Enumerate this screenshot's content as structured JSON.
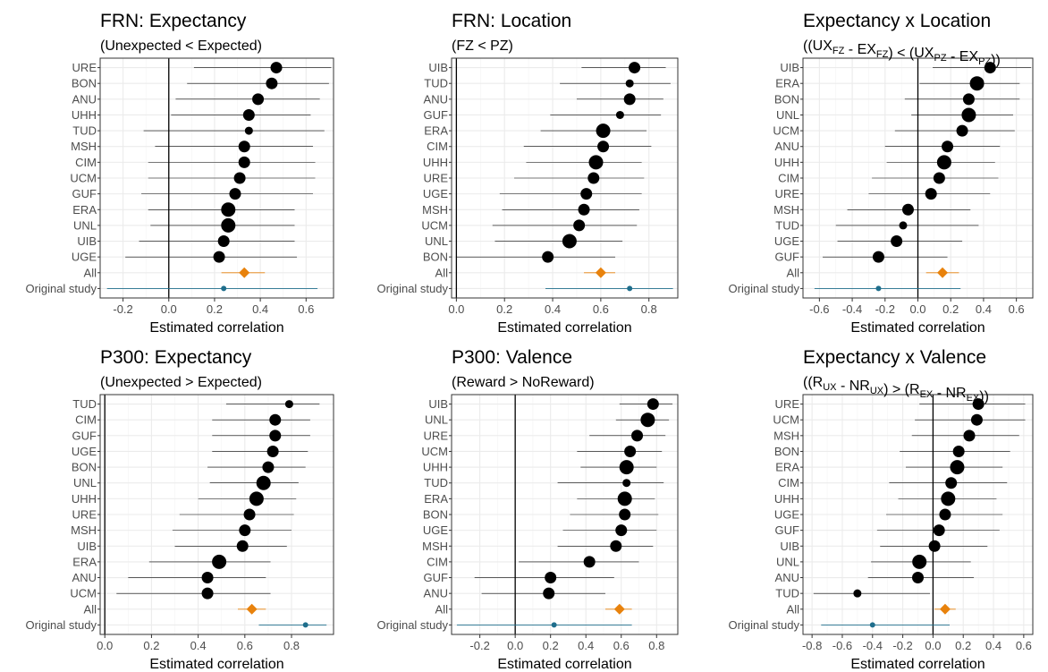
{
  "chart_data": [
    {
      "type": "scatter",
      "title": "FRN: Expectancy",
      "subtitle": [
        {
          "t": "(Unexpected < Expected)"
        }
      ],
      "xlabel": "Estimated correlation",
      "xlim": [
        -0.3,
        0.72
      ],
      "xticks": [
        -0.2,
        0.0,
        0.2,
        0.4,
        0.6
      ],
      "xtick_labels": [
        "-0.2",
        "0.0",
        "0.2",
        "0.4",
        "0.6"
      ],
      "rows": [
        {
          "label": "URE",
          "estimate": 0.47,
          "lower": 0.11,
          "upper": 0.71,
          "size": 2
        },
        {
          "label": "BON",
          "estimate": 0.45,
          "lower": 0.08,
          "upper": 0.7,
          "size": 2
        },
        {
          "label": "ANU",
          "estimate": 0.39,
          "lower": 0.03,
          "upper": 0.66,
          "size": 2
        },
        {
          "label": "UHH",
          "estimate": 0.35,
          "lower": 0.01,
          "upper": 0.62,
          "size": 2
        },
        {
          "label": "TUD",
          "estimate": 0.35,
          "lower": -0.11,
          "upper": 0.68,
          "size": 1
        },
        {
          "label": "MSH",
          "estimate": 0.33,
          "lower": -0.06,
          "upper": 0.63,
          "size": 2
        },
        {
          "label": "CIM",
          "estimate": 0.33,
          "lower": -0.09,
          "upper": 0.64,
          "size": 2
        },
        {
          "label": "UCM",
          "estimate": 0.31,
          "lower": -0.09,
          "upper": 0.64,
          "size": 2
        },
        {
          "label": "GUF",
          "estimate": 0.29,
          "lower": -0.12,
          "upper": 0.63,
          "size": 2
        },
        {
          "label": "ERA",
          "estimate": 0.26,
          "lower": -0.09,
          "upper": 0.55,
          "size": 3
        },
        {
          "label": "UNL",
          "estimate": 0.26,
          "lower": -0.08,
          "upper": 0.55,
          "size": 3
        },
        {
          "label": "UIB",
          "estimate": 0.24,
          "lower": -0.13,
          "upper": 0.55,
          "size": 2
        },
        {
          "label": "UGE",
          "estimate": 0.22,
          "lower": -0.19,
          "upper": 0.56,
          "size": 2
        },
        {
          "label": "All",
          "estimate": 0.33,
          "lower": 0.23,
          "upper": 0.42,
          "kind": "all"
        },
        {
          "label": "Original study",
          "estimate": 0.24,
          "lower": -0.27,
          "upper": 0.65,
          "kind": "original"
        }
      ]
    },
    {
      "type": "scatter",
      "title": "FRN: Location",
      "subtitle": [
        {
          "t": "(FZ < PZ)"
        }
      ],
      "xlabel": "Estimated correlation",
      "xlim": [
        -0.02,
        0.92
      ],
      "xticks": [
        0.0,
        0.2,
        0.4,
        0.6,
        0.8
      ],
      "xtick_labels": [
        "0.0",
        "0.2",
        "0.4",
        "0.6",
        "0.8"
      ],
      "rows": [
        {
          "label": "UIB",
          "estimate": 0.74,
          "lower": 0.52,
          "upper": 0.87,
          "size": 2
        },
        {
          "label": "TUD",
          "estimate": 0.72,
          "lower": 0.43,
          "upper": 0.89,
          "size": 1
        },
        {
          "label": "ANU",
          "estimate": 0.72,
          "lower": 0.5,
          "upper": 0.86,
          "size": 2
        },
        {
          "label": "GUF",
          "estimate": 0.68,
          "lower": 0.39,
          "upper": 0.85,
          "size": 1
        },
        {
          "label": "ERA",
          "estimate": 0.61,
          "lower": 0.35,
          "upper": 0.79,
          "size": 3
        },
        {
          "label": "CIM",
          "estimate": 0.61,
          "lower": 0.28,
          "upper": 0.81,
          "size": 2
        },
        {
          "label": "UHH",
          "estimate": 0.58,
          "lower": 0.29,
          "upper": 0.77,
          "size": 3
        },
        {
          "label": "URE",
          "estimate": 0.57,
          "lower": 0.24,
          "upper": 0.78,
          "size": 2
        },
        {
          "label": "UGE",
          "estimate": 0.54,
          "lower": 0.18,
          "upper": 0.77,
          "size": 2
        },
        {
          "label": "MSH",
          "estimate": 0.53,
          "lower": 0.19,
          "upper": 0.76,
          "size": 2
        },
        {
          "label": "UCM",
          "estimate": 0.51,
          "lower": 0.15,
          "upper": 0.75,
          "size": 2
        },
        {
          "label": "UNL",
          "estimate": 0.47,
          "lower": 0.16,
          "upper": 0.69,
          "size": 3
        },
        {
          "label": "BON",
          "estimate": 0.38,
          "lower": 0.0,
          "upper": 0.66,
          "size": 2
        },
        {
          "label": "All",
          "estimate": 0.6,
          "lower": 0.53,
          "upper": 0.66,
          "kind": "all"
        },
        {
          "label": "Original study",
          "estimate": 0.72,
          "lower": 0.37,
          "upper": 0.9,
          "kind": "original"
        }
      ]
    },
    {
      "type": "scatter",
      "title": "Expectancy x Location",
      "subtitle": [
        {
          "t": "(("
        },
        {
          "t": "UX"
        },
        {
          "t": "FZ",
          "sub": true
        },
        {
          "t": " - "
        },
        {
          "t": "EX"
        },
        {
          "t": "FZ",
          "sub": true
        },
        {
          "t": ") < ("
        },
        {
          "t": "UX"
        },
        {
          "t": "PZ",
          "sub": true
        },
        {
          "t": " - "
        },
        {
          "t": "EX"
        },
        {
          "t": "PZ",
          "sub": true
        },
        {
          "t": "))"
        }
      ],
      "xlabel": "Estimated correlation",
      "xlim": [
        -0.7,
        0.7
      ],
      "xticks": [
        -0.6,
        -0.4,
        -0.2,
        0.0,
        0.2,
        0.4,
        0.6
      ],
      "xtick_labels": [
        "-0.6",
        "-0.4",
        "-0.2",
        "0.0",
        "0.2",
        "0.4",
        "0.6"
      ],
      "rows": [
        {
          "label": "UIB",
          "estimate": 0.44,
          "lower": 0.09,
          "upper": 0.69,
          "size": 2
        },
        {
          "label": "ERA",
          "estimate": 0.36,
          "lower": 0.01,
          "upper": 0.62,
          "size": 3
        },
        {
          "label": "BON",
          "estimate": 0.31,
          "lower": -0.08,
          "upper": 0.62,
          "size": 2
        },
        {
          "label": "UNL",
          "estimate": 0.31,
          "lower": -0.04,
          "upper": 0.58,
          "size": 3
        },
        {
          "label": "UCM",
          "estimate": 0.27,
          "lower": -0.14,
          "upper": 0.59,
          "size": 2
        },
        {
          "label": "ANU",
          "estimate": 0.18,
          "lower": -0.2,
          "upper": 0.5,
          "size": 2
        },
        {
          "label": "UHH",
          "estimate": 0.16,
          "lower": -0.19,
          "upper": 0.47,
          "size": 3
        },
        {
          "label": "CIM",
          "estimate": 0.13,
          "lower": -0.28,
          "upper": 0.49,
          "size": 2
        },
        {
          "label": "URE",
          "estimate": 0.08,
          "lower": -0.3,
          "upper": 0.44,
          "size": 2
        },
        {
          "label": "MSH",
          "estimate": -0.06,
          "lower": -0.43,
          "upper": 0.32,
          "size": 2
        },
        {
          "label": "TUD",
          "estimate": -0.09,
          "lower": -0.5,
          "upper": 0.37,
          "size": 1
        },
        {
          "label": "UGE",
          "estimate": -0.13,
          "lower": -0.49,
          "upper": 0.27,
          "size": 2
        },
        {
          "label": "GUF",
          "estimate": -0.24,
          "lower": -0.58,
          "upper": 0.18,
          "size": 2
        },
        {
          "label": "All",
          "estimate": 0.15,
          "lower": 0.05,
          "upper": 0.25,
          "kind": "all"
        },
        {
          "label": "Original study",
          "estimate": -0.24,
          "lower": -0.63,
          "upper": 0.26,
          "kind": "original"
        }
      ]
    },
    {
      "type": "scatter",
      "title": "P300: Expectancy",
      "subtitle": [
        {
          "t": "(Unexpected > Expected)"
        }
      ],
      "xlabel": "Estimated correlation",
      "xlim": [
        -0.02,
        0.98
      ],
      "xticks": [
        0.0,
        0.2,
        0.4,
        0.6,
        0.8
      ],
      "xtick_labels": [
        "0.0",
        "0.2",
        "0.4",
        "0.6",
        "0.8"
      ],
      "rows": [
        {
          "label": "TUD",
          "estimate": 0.79,
          "lower": 0.52,
          "upper": 0.92,
          "size": 1
        },
        {
          "label": "CIM",
          "estimate": 0.73,
          "lower": 0.46,
          "upper": 0.88,
          "size": 2
        },
        {
          "label": "GUF",
          "estimate": 0.73,
          "lower": 0.46,
          "upper": 0.88,
          "size": 2
        },
        {
          "label": "UGE",
          "estimate": 0.72,
          "lower": 0.46,
          "upper": 0.87,
          "size": 2
        },
        {
          "label": "BON",
          "estimate": 0.7,
          "lower": 0.44,
          "upper": 0.86,
          "size": 2
        },
        {
          "label": "UNL",
          "estimate": 0.68,
          "lower": 0.45,
          "upper": 0.83,
          "size": 3
        },
        {
          "label": "UHH",
          "estimate": 0.65,
          "lower": 0.4,
          "upper": 0.82,
          "size": 3
        },
        {
          "label": "URE",
          "estimate": 0.62,
          "lower": 0.32,
          "upper": 0.81,
          "size": 2
        },
        {
          "label": "MSH",
          "estimate": 0.6,
          "lower": 0.29,
          "upper": 0.8,
          "size": 2
        },
        {
          "label": "UIB",
          "estimate": 0.59,
          "lower": 0.3,
          "upper": 0.78,
          "size": 2
        },
        {
          "label": "ERA",
          "estimate": 0.49,
          "lower": 0.19,
          "upper": 0.71,
          "size": 3
        },
        {
          "label": "ANU",
          "estimate": 0.44,
          "lower": 0.1,
          "upper": 0.69,
          "size": 2
        },
        {
          "label": "UCM",
          "estimate": 0.44,
          "lower": 0.05,
          "upper": 0.71,
          "size": 2
        },
        {
          "label": "All",
          "estimate": 0.63,
          "lower": 0.57,
          "upper": 0.69,
          "kind": "all"
        },
        {
          "label": "Original study",
          "estimate": 0.86,
          "lower": 0.66,
          "upper": 0.95,
          "kind": "original"
        }
      ]
    },
    {
      "type": "scatter",
      "title": "P300: Valence",
      "subtitle": [
        {
          "t": "(Reward > NoReward)"
        }
      ],
      "xlabel": "Estimated correlation",
      "xlim": [
        -0.36,
        0.92
      ],
      "xticks": [
        -0.2,
        0.0,
        0.2,
        0.4,
        0.6,
        0.8
      ],
      "xtick_labels": [
        "-0.2",
        "0.0",
        "0.2",
        "0.4",
        "0.6",
        "0.8"
      ],
      "rows": [
        {
          "label": "UIB",
          "estimate": 0.78,
          "lower": 0.59,
          "upper": 0.89,
          "size": 2
        },
        {
          "label": "UNL",
          "estimate": 0.75,
          "lower": 0.57,
          "upper": 0.87,
          "size": 3
        },
        {
          "label": "URE",
          "estimate": 0.69,
          "lower": 0.42,
          "upper": 0.85,
          "size": 2
        },
        {
          "label": "UCM",
          "estimate": 0.65,
          "lower": 0.35,
          "upper": 0.83,
          "size": 2
        },
        {
          "label": "UHH",
          "estimate": 0.63,
          "lower": 0.37,
          "upper": 0.8,
          "size": 3
        },
        {
          "label": "TUD",
          "estimate": 0.63,
          "lower": 0.24,
          "upper": 0.84,
          "size": 1
        },
        {
          "label": "ERA",
          "estimate": 0.62,
          "lower": 0.35,
          "upper": 0.79,
          "size": 3
        },
        {
          "label": "BON",
          "estimate": 0.62,
          "lower": 0.31,
          "upper": 0.81,
          "size": 2
        },
        {
          "label": "UGE",
          "estimate": 0.6,
          "lower": 0.27,
          "upper": 0.8,
          "size": 2
        },
        {
          "label": "MSH",
          "estimate": 0.57,
          "lower": 0.24,
          "upper": 0.78,
          "size": 2
        },
        {
          "label": "CIM",
          "estimate": 0.42,
          "lower": 0.02,
          "upper": 0.7,
          "size": 2
        },
        {
          "label": "GUF",
          "estimate": 0.2,
          "lower": -0.23,
          "upper": 0.56,
          "size": 2
        },
        {
          "label": "ANU",
          "estimate": 0.19,
          "lower": -0.19,
          "upper": 0.51,
          "size": 2
        },
        {
          "label": "All",
          "estimate": 0.59,
          "lower": 0.51,
          "upper": 0.66,
          "kind": "all"
        },
        {
          "label": "Original study",
          "estimate": 0.22,
          "lower": -0.33,
          "upper": 0.66,
          "kind": "original"
        }
      ]
    },
    {
      "type": "scatter",
      "title": "Expectancy x Valence",
      "subtitle": [
        {
          "t": "(("
        },
        {
          "t": "R"
        },
        {
          "t": "UX",
          "sub": true
        },
        {
          "t": " - "
        },
        {
          "t": "NR"
        },
        {
          "t": "UX",
          "sub": true
        },
        {
          "t": ") > ("
        },
        {
          "t": "R"
        },
        {
          "t": "EX",
          "sub": true
        },
        {
          "t": " - "
        },
        {
          "t": "NR"
        },
        {
          "t": "EX",
          "sub": true
        },
        {
          "t": "))"
        }
      ],
      "xlabel": "Estimated correlation",
      "xlim": [
        -0.86,
        0.66
      ],
      "xticks": [
        -0.8,
        -0.6,
        -0.4,
        -0.2,
        0.0,
        0.2,
        0.4,
        0.6
      ],
      "xtick_labels": [
        "-0.8",
        "-0.6",
        "-0.4",
        "-0.2",
        "0.0",
        "0.2",
        "0.4",
        "0.6"
      ],
      "rows": [
        {
          "label": "URE",
          "estimate": 0.3,
          "lower": -0.09,
          "upper": 0.61,
          "size": 2
        },
        {
          "label": "UCM",
          "estimate": 0.29,
          "lower": -0.12,
          "upper": 0.61,
          "size": 2
        },
        {
          "label": "MSH",
          "estimate": 0.24,
          "lower": -0.14,
          "upper": 0.57,
          "size": 2
        },
        {
          "label": "BON",
          "estimate": 0.17,
          "lower": -0.22,
          "upper": 0.51,
          "size": 2
        },
        {
          "label": "ERA",
          "estimate": 0.16,
          "lower": -0.18,
          "upper": 0.46,
          "size": 3
        },
        {
          "label": "CIM",
          "estimate": 0.12,
          "lower": -0.29,
          "upper": 0.49,
          "size": 2
        },
        {
          "label": "UHH",
          "estimate": 0.1,
          "lower": -0.23,
          "upper": 0.42,
          "size": 3
        },
        {
          "label": "UGE",
          "estimate": 0.08,
          "lower": -0.31,
          "upper": 0.46,
          "size": 2
        },
        {
          "label": "GUF",
          "estimate": 0.04,
          "lower": -0.37,
          "upper": 0.44,
          "size": 2
        },
        {
          "label": "UIB",
          "estimate": 0.01,
          "lower": -0.35,
          "upper": 0.36,
          "size": 2
        },
        {
          "label": "UNL",
          "estimate": -0.09,
          "lower": -0.41,
          "upper": 0.25,
          "size": 3
        },
        {
          "label": "ANU",
          "estimate": -0.1,
          "lower": -0.43,
          "upper": 0.27,
          "size": 2
        },
        {
          "label": "TUD",
          "estimate": -0.5,
          "lower": -0.79,
          "upper": -0.02,
          "size": 1
        },
        {
          "label": "All",
          "estimate": 0.08,
          "lower": 0.01,
          "upper": 0.15,
          "kind": "all"
        },
        {
          "label": "Original study",
          "estimate": -0.4,
          "lower": -0.74,
          "upper": 0.11,
          "kind": "original"
        }
      ]
    }
  ],
  "colors": {
    "site_point": "#000000",
    "all_diamond": "#e8820c",
    "original_point": "#1f6e8c",
    "zero_line": "#000000",
    "panel_border": "#333333",
    "grid": "#ebebeb"
  }
}
